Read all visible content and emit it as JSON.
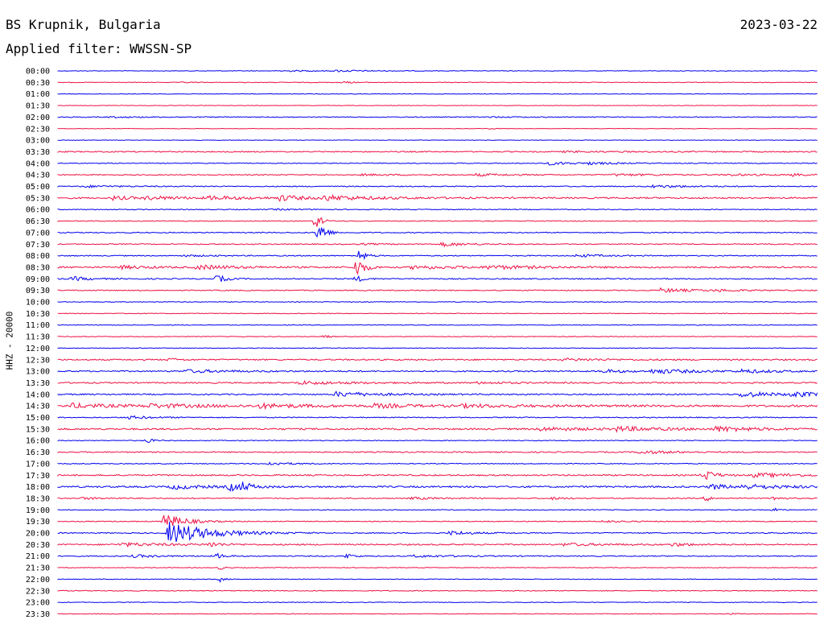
{
  "header": {
    "station_title": "BS Krupnik, Bulgaria",
    "date": "2023-03-22",
    "filter_label": "Applied filter: WWSSN-SP",
    "channel_label": "HHZ - 20000"
  },
  "colors": {
    "trace_a": "#0000ee",
    "trace_b": "#ee1144",
    "background": "#ffffff",
    "text": "#000000"
  },
  "chart_data": {
    "type": "helicorder",
    "title": "BS Krupnik, Bulgaria",
    "subtitle": "Applied filter: WWSSN-SP",
    "ylabel": "HHZ - 20000",
    "date": "2023-03-22",
    "row_duration_minutes": 30,
    "x_range_minutes": [
      0,
      30
    ],
    "rows": [
      {
        "time": "00:00",
        "noise": 0.4,
        "events": [
          [
            8.8,
            2.5,
            0.7
          ],
          [
            11.0,
            1.8,
            0.9
          ]
        ]
      },
      {
        "time": "00:30",
        "noise": 0.4,
        "events": [
          [
            11.3,
            0.6,
            1.2
          ],
          [
            5.0,
            0.4,
            0.8
          ]
        ]
      },
      {
        "time": "01:00",
        "noise": 0.3,
        "events": []
      },
      {
        "time": "01:30",
        "noise": 0.3,
        "events": []
      },
      {
        "time": "02:00",
        "noise": 0.5,
        "events": [
          [
            2.0,
            3.0,
            0.6
          ],
          [
            17.0,
            2.0,
            0.5
          ]
        ]
      },
      {
        "time": "02:30",
        "noise": 0.3,
        "events": [
          [
            17.0,
            0.6,
            0.6
          ]
        ]
      },
      {
        "time": "03:00",
        "noise": 0.3,
        "events": []
      },
      {
        "time": "03:30",
        "noise": 0.7,
        "events": [
          [
            20.0,
            4.0,
            0.6
          ]
        ]
      },
      {
        "time": "04:00",
        "noise": 0.5,
        "events": [
          [
            19.3,
            2.5,
            1.8
          ],
          [
            21.0,
            1.2,
            1.0
          ]
        ]
      },
      {
        "time": "04:30",
        "noise": 0.6,
        "events": [
          [
            12.0,
            2.5,
            0.8
          ],
          [
            16.5,
            2.0,
            1.4
          ],
          [
            22.0,
            2.5,
            1.4
          ],
          [
            26.5,
            2.0,
            1.0
          ],
          [
            29.0,
            1.0,
            1.4
          ]
        ]
      },
      {
        "time": "05:00",
        "noise": 0.6,
        "events": [
          [
            1.0,
            2.0,
            1.2
          ],
          [
            23.5,
            2.5,
            1.5
          ]
        ]
      },
      {
        "time": "05:30",
        "noise": 0.9,
        "events": [
          [
            2.2,
            1.0,
            2.5
          ],
          [
            3.5,
            3.0,
            1.8
          ],
          [
            6.0,
            2.5,
            1.8
          ],
          [
            8.8,
            1.2,
            3.5
          ],
          [
            10.5,
            3.5,
            2.8
          ]
        ]
      },
      {
        "time": "06:00",
        "noise": 0.5,
        "events": [
          [
            8.5,
            2.0,
            0.7
          ]
        ]
      },
      {
        "time": "06:30",
        "noise": 0.5,
        "events": [
          [
            10.2,
            0.3,
            12.0
          ]
        ]
      },
      {
        "time": "07:00",
        "noise": 0.6,
        "events": [
          [
            10.3,
            0.4,
            16.0
          ]
        ]
      },
      {
        "time": "07:30",
        "noise": 0.6,
        "events": [
          [
            15.2,
            1.5,
            2.5
          ],
          [
            12.0,
            1.5,
            0.8
          ]
        ]
      },
      {
        "time": "08:00",
        "noise": 0.6,
        "events": [
          [
            11.9,
            0.4,
            8.0
          ],
          [
            20.5,
            1.5,
            1.8
          ],
          [
            5.0,
            2.0,
            0.8
          ]
        ]
      },
      {
        "time": "08:30",
        "noise": 0.9,
        "events": [
          [
            2.5,
            2.0,
            1.8
          ],
          [
            5.5,
            2.5,
            2.5
          ],
          [
            11.8,
            0.5,
            12.0
          ],
          [
            14.0,
            3.0,
            2.0
          ],
          [
            17.0,
            3.5,
            1.8
          ]
        ]
      },
      {
        "time": "09:00",
        "noise": 0.7,
        "events": [
          [
            0.6,
            1.0,
            2.5
          ],
          [
            6.3,
            0.5,
            5.0
          ],
          [
            11.8,
            0.4,
            4.0
          ]
        ]
      },
      {
        "time": "09:30",
        "noise": 0.6,
        "events": [
          [
            23.8,
            2.0,
            2.5
          ],
          [
            26.0,
            2.0,
            1.0
          ]
        ]
      },
      {
        "time": "10:00",
        "noise": 0.4,
        "events": []
      },
      {
        "time": "10:30",
        "noise": 0.4,
        "events": []
      },
      {
        "time": "11:00",
        "noise": 0.4,
        "events": []
      },
      {
        "time": "11:30",
        "noise": 0.4,
        "events": [
          [
            10.5,
            0.3,
            2.5
          ]
        ]
      },
      {
        "time": "12:00",
        "noise": 0.4,
        "events": []
      },
      {
        "time": "12:30",
        "noise": 0.8,
        "events": [
          [
            4.4,
            0.6,
            1.5
          ],
          [
            20.0,
            3.0,
            1.2
          ]
        ]
      },
      {
        "time": "13:00",
        "noise": 0.8,
        "events": [
          [
            5.0,
            3.0,
            1.8
          ],
          [
            21.5,
            1.5,
            2.0
          ],
          [
            23.5,
            3.0,
            2.5
          ],
          [
            27.0,
            2.0,
            1.8
          ]
        ]
      },
      {
        "time": "13:30",
        "noise": 0.8,
        "events": [
          [
            9.5,
            3.5,
            1.8
          ],
          [
            16.5,
            2.5,
            1.0
          ]
        ]
      },
      {
        "time": "14:00",
        "noise": 0.8,
        "events": [
          [
            11.0,
            2.5,
            3.0
          ],
          [
            27.0,
            2.0,
            3.5
          ],
          [
            29.0,
            1.5,
            3.0
          ]
        ]
      },
      {
        "time": "14:30",
        "noise": 1.2,
        "events": [
          [
            0.5,
            2.5,
            2.5
          ],
          [
            3.5,
            4.0,
            2.0
          ],
          [
            8.0,
            3.0,
            2.2
          ],
          [
            12.5,
            2.5,
            2.0
          ],
          [
            16.0,
            4.0,
            1.5
          ]
        ]
      },
      {
        "time": "15:00",
        "noise": 0.6,
        "events": [
          [
            2.8,
            1.5,
            1.8
          ]
        ]
      },
      {
        "time": "15:30",
        "noise": 1.0,
        "events": [
          [
            19.0,
            3.0,
            2.0
          ],
          [
            22.0,
            3.0,
            2.5
          ],
          [
            26.0,
            2.5,
            2.8
          ]
        ]
      },
      {
        "time": "16:00",
        "noise": 0.5,
        "events": [
          [
            3.5,
            0.4,
            3.0
          ]
        ]
      },
      {
        "time": "16:30",
        "noise": 0.7,
        "events": [
          [
            23.0,
            2.0,
            2.0
          ]
        ]
      },
      {
        "time": "17:00",
        "noise": 0.5,
        "events": [
          [
            8.3,
            1.5,
            2.0
          ]
        ]
      },
      {
        "time": "17:30",
        "noise": 0.8,
        "events": [
          [
            25.5,
            0.6,
            8.0
          ],
          [
            27.5,
            3.0,
            2.5
          ]
        ]
      },
      {
        "time": "18:00",
        "noise": 1.0,
        "events": [
          [
            4.5,
            2.0,
            2.5
          ],
          [
            6.8,
            0.8,
            4.5
          ],
          [
            7.3,
            0.6,
            4.0
          ],
          [
            25.8,
            1.0,
            3.5
          ],
          [
            27.0,
            3.0,
            2.5
          ]
        ]
      },
      {
        "time": "18:30",
        "noise": 0.6,
        "events": [
          [
            1.0,
            1.5,
            1.2
          ],
          [
            14.0,
            2.0,
            1.2
          ],
          [
            19.5,
            1.0,
            1.2
          ],
          [
            25.6,
            0.4,
            3.5
          ],
          [
            28.3,
            0.4,
            3.0
          ]
        ]
      },
      {
        "time": "19:00",
        "noise": 0.5,
        "events": [
          [
            28.3,
            0.3,
            2.5
          ]
        ]
      },
      {
        "time": "19:30",
        "noise": 0.5,
        "events": [
          [
            4.2,
            1.2,
            10.0
          ],
          [
            21.5,
            1.5,
            1.2
          ]
        ]
      },
      {
        "time": "20:00",
        "noise": 0.6,
        "events": [
          [
            4.4,
            2.5,
            14.0
          ],
          [
            15.5,
            1.5,
            2.5
          ]
        ]
      },
      {
        "time": "20:30",
        "noise": 0.8,
        "events": [
          [
            2.5,
            3.0,
            2.0
          ],
          [
            6.0,
            0.6,
            3.0
          ],
          [
            20.0,
            2.5,
            1.5
          ],
          [
            24.3,
            1.0,
            2.0
          ]
        ]
      },
      {
        "time": "21:00",
        "noise": 0.6,
        "events": [
          [
            3.0,
            2.0,
            1.5
          ],
          [
            6.3,
            0.5,
            3.0
          ],
          [
            11.4,
            0.5,
            3.0
          ],
          [
            14.0,
            3.0,
            1.2
          ]
        ]
      },
      {
        "time": "21:30",
        "noise": 0.4,
        "events": [
          [
            6.4,
            0.3,
            2.5
          ]
        ]
      },
      {
        "time": "22:00",
        "noise": 0.4,
        "events": [
          [
            6.4,
            0.3,
            3.0
          ]
        ]
      },
      {
        "time": "22:30",
        "noise": 0.5,
        "events": []
      },
      {
        "time": "23:00",
        "noise": 0.4,
        "events": []
      },
      {
        "time": "23:30",
        "noise": 0.4,
        "events": [
          [
            26.5,
            0.4,
            0.8
          ]
        ]
      }
    ]
  }
}
